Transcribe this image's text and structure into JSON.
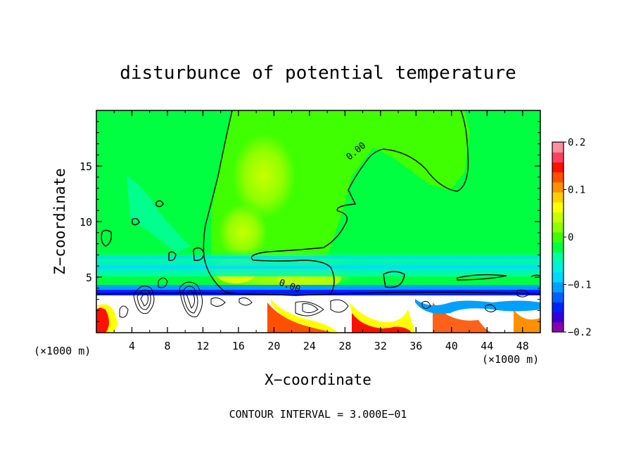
{
  "chart_data": {
    "type": "heatmap",
    "title": "disturbunce of potential temperature",
    "xlabel": "X−coordinate",
    "ylabel": "Z−coordinate",
    "x_unit": "(×1000 m)",
    "x_unit_right": "(×1000 m)",
    "footer": "CONTOUR INTERVAL = 3.000E−01",
    "xlim": [
      0,
      50
    ],
    "ylim": [
      0,
      20
    ],
    "x_ticks": [
      4,
      8,
      12,
      16,
      20,
      24,
      28,
      32,
      36,
      40,
      44,
      48
    ],
    "x_tick_labels": [
      "4",
      "8",
      "12",
      "16",
      "20",
      "24",
      "28",
      "32",
      "36",
      "40",
      "44",
      "48"
    ],
    "y_ticks": [
      5,
      10,
      15
    ],
    "y_tick_labels": [
      "5",
      "10",
      "15"
    ],
    "colorbar": {
      "range": [
        -0.2,
        0.2
      ],
      "tick_values": [
        0.2,
        0.1,
        0,
        -0.1,
        -0.2
      ],
      "tick_labels": [
        "0.2",
        "0.1",
        "0",
        "−0.1",
        "−0.2"
      ],
      "colors": [
        "#8a00b0",
        "#3300dd",
        "#0020ff",
        "#0060ff",
        "#00a0ff",
        "#00d8ff",
        "#00f0e0",
        "#00ffa0",
        "#00ff40",
        "#40ff00",
        "#90ff00",
        "#c8ff00",
        "#ffff00",
        "#ffd000",
        "#ff9000",
        "#ff5000",
        "#ff1000",
        "#ff4060",
        "#ff90a0"
      ]
    },
    "contour_labels": [
      {
        "text": "0.00",
        "x": 28.5,
        "z": 15.5
      },
      {
        "text": "0.00",
        "x": 20.5,
        "z": 4.3
      }
    ]
  }
}
